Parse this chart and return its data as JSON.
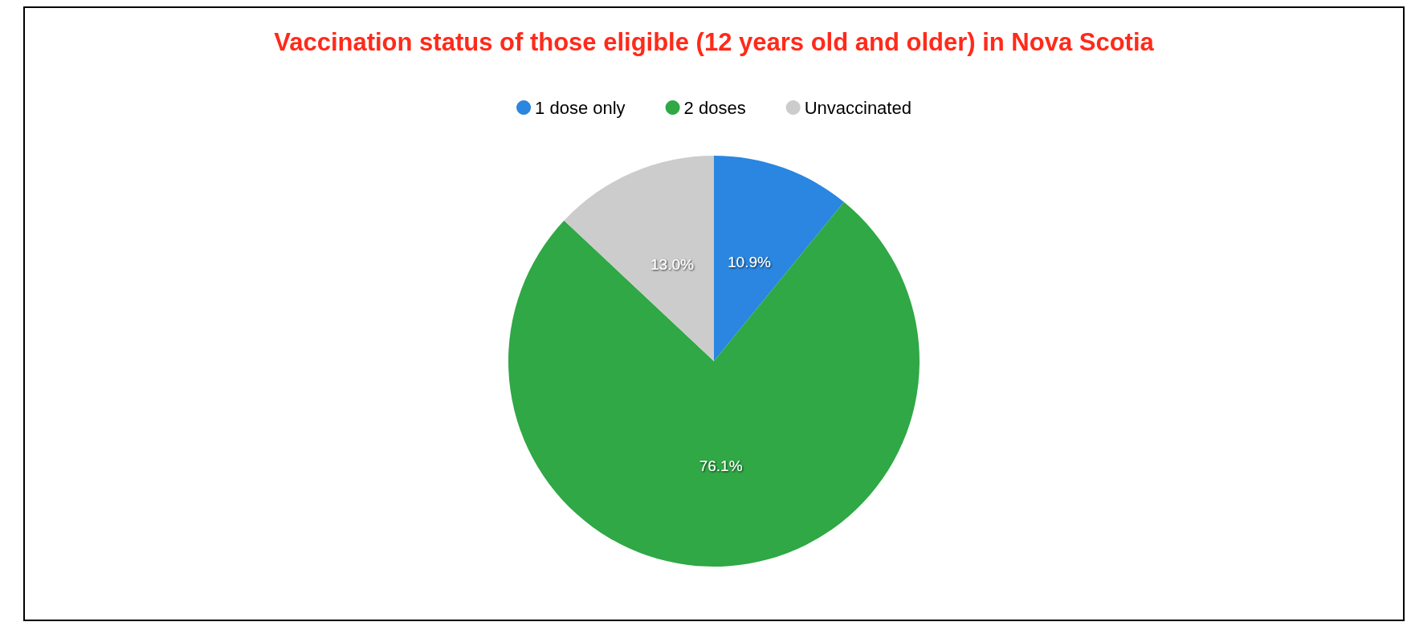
{
  "chart_data": {
    "type": "pie",
    "title": "Vaccination status of those eligible (12 years old and older) in Nova Scotia",
    "categories": [
      "1 dose only",
      "2 doses",
      "Unvaccinated"
    ],
    "values": [
      10.9,
      76.1,
      13.0
    ],
    "value_labels": [
      "10.9%",
      "76.1%",
      "13.0%"
    ],
    "colors": [
      "#2a86e0",
      "#2fa845",
      "#cccccc"
    ],
    "legend": "top"
  }
}
